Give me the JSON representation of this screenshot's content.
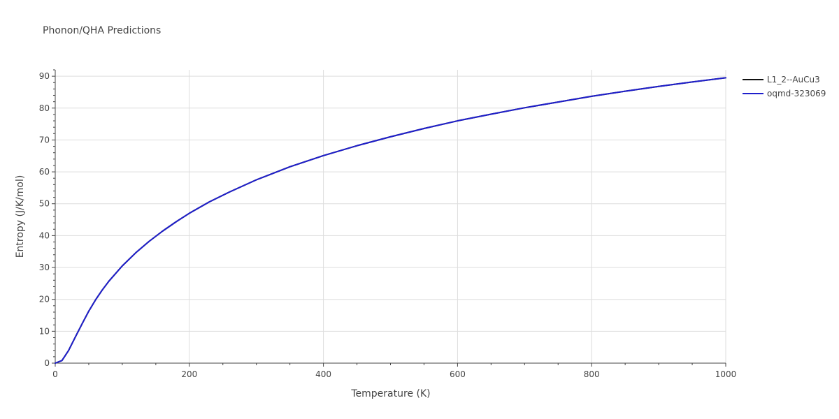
{
  "chart_data": {
    "type": "line",
    "title": "Phonon/QHA Predictions",
    "xlabel": "Temperature (K)",
    "ylabel": "Entropy (J/K/mol)",
    "xlim": [
      0,
      1000
    ],
    "ylim": [
      0,
      92
    ],
    "x_ticks": [
      0,
      200,
      400,
      600,
      800,
      1000
    ],
    "y_ticks": [
      0,
      10,
      20,
      30,
      40,
      50,
      60,
      70,
      80,
      90
    ],
    "grid": true,
    "legend_position": "right",
    "series": [
      {
        "name": "L1_2--AuCu3",
        "color": "#111111",
        "x": [
          0,
          10,
          20,
          30,
          40,
          50,
          60,
          70,
          80,
          100,
          120,
          140,
          160,
          180,
          200,
          230,
          260,
          300,
          350,
          400,
          450,
          500,
          550,
          600,
          650,
          700,
          750,
          800,
          850,
          900,
          950,
          1000
        ],
        "y": [
          0,
          0.8,
          4,
          8.2,
          12.3,
          16.3,
          19.8,
          22.9,
          25.7,
          30.5,
          34.6,
          38.2,
          41.4,
          44.3,
          47,
          50.6,
          53.7,
          57.5,
          61.6,
          65.1,
          68.2,
          71,
          73.6,
          76,
          78.1,
          80.1,
          81.9,
          83.7,
          85.3,
          86.8,
          88.2,
          89.5
        ]
      },
      {
        "name": "oqmd-323069",
        "color": "#1f1fcc",
        "x": [
          0,
          10,
          20,
          30,
          40,
          50,
          60,
          70,
          80,
          100,
          120,
          140,
          160,
          180,
          200,
          230,
          260,
          300,
          350,
          400,
          450,
          500,
          550,
          600,
          650,
          700,
          750,
          800,
          850,
          900,
          950,
          1000
        ],
        "y": [
          0,
          0.8,
          4,
          8.2,
          12.3,
          16.3,
          19.8,
          22.9,
          25.7,
          30.5,
          34.6,
          38.2,
          41.4,
          44.3,
          47,
          50.6,
          53.7,
          57.5,
          61.6,
          65.1,
          68.2,
          71,
          73.6,
          76,
          78.1,
          80.1,
          81.9,
          83.7,
          85.3,
          86.8,
          88.2,
          89.5
        ]
      }
    ]
  }
}
